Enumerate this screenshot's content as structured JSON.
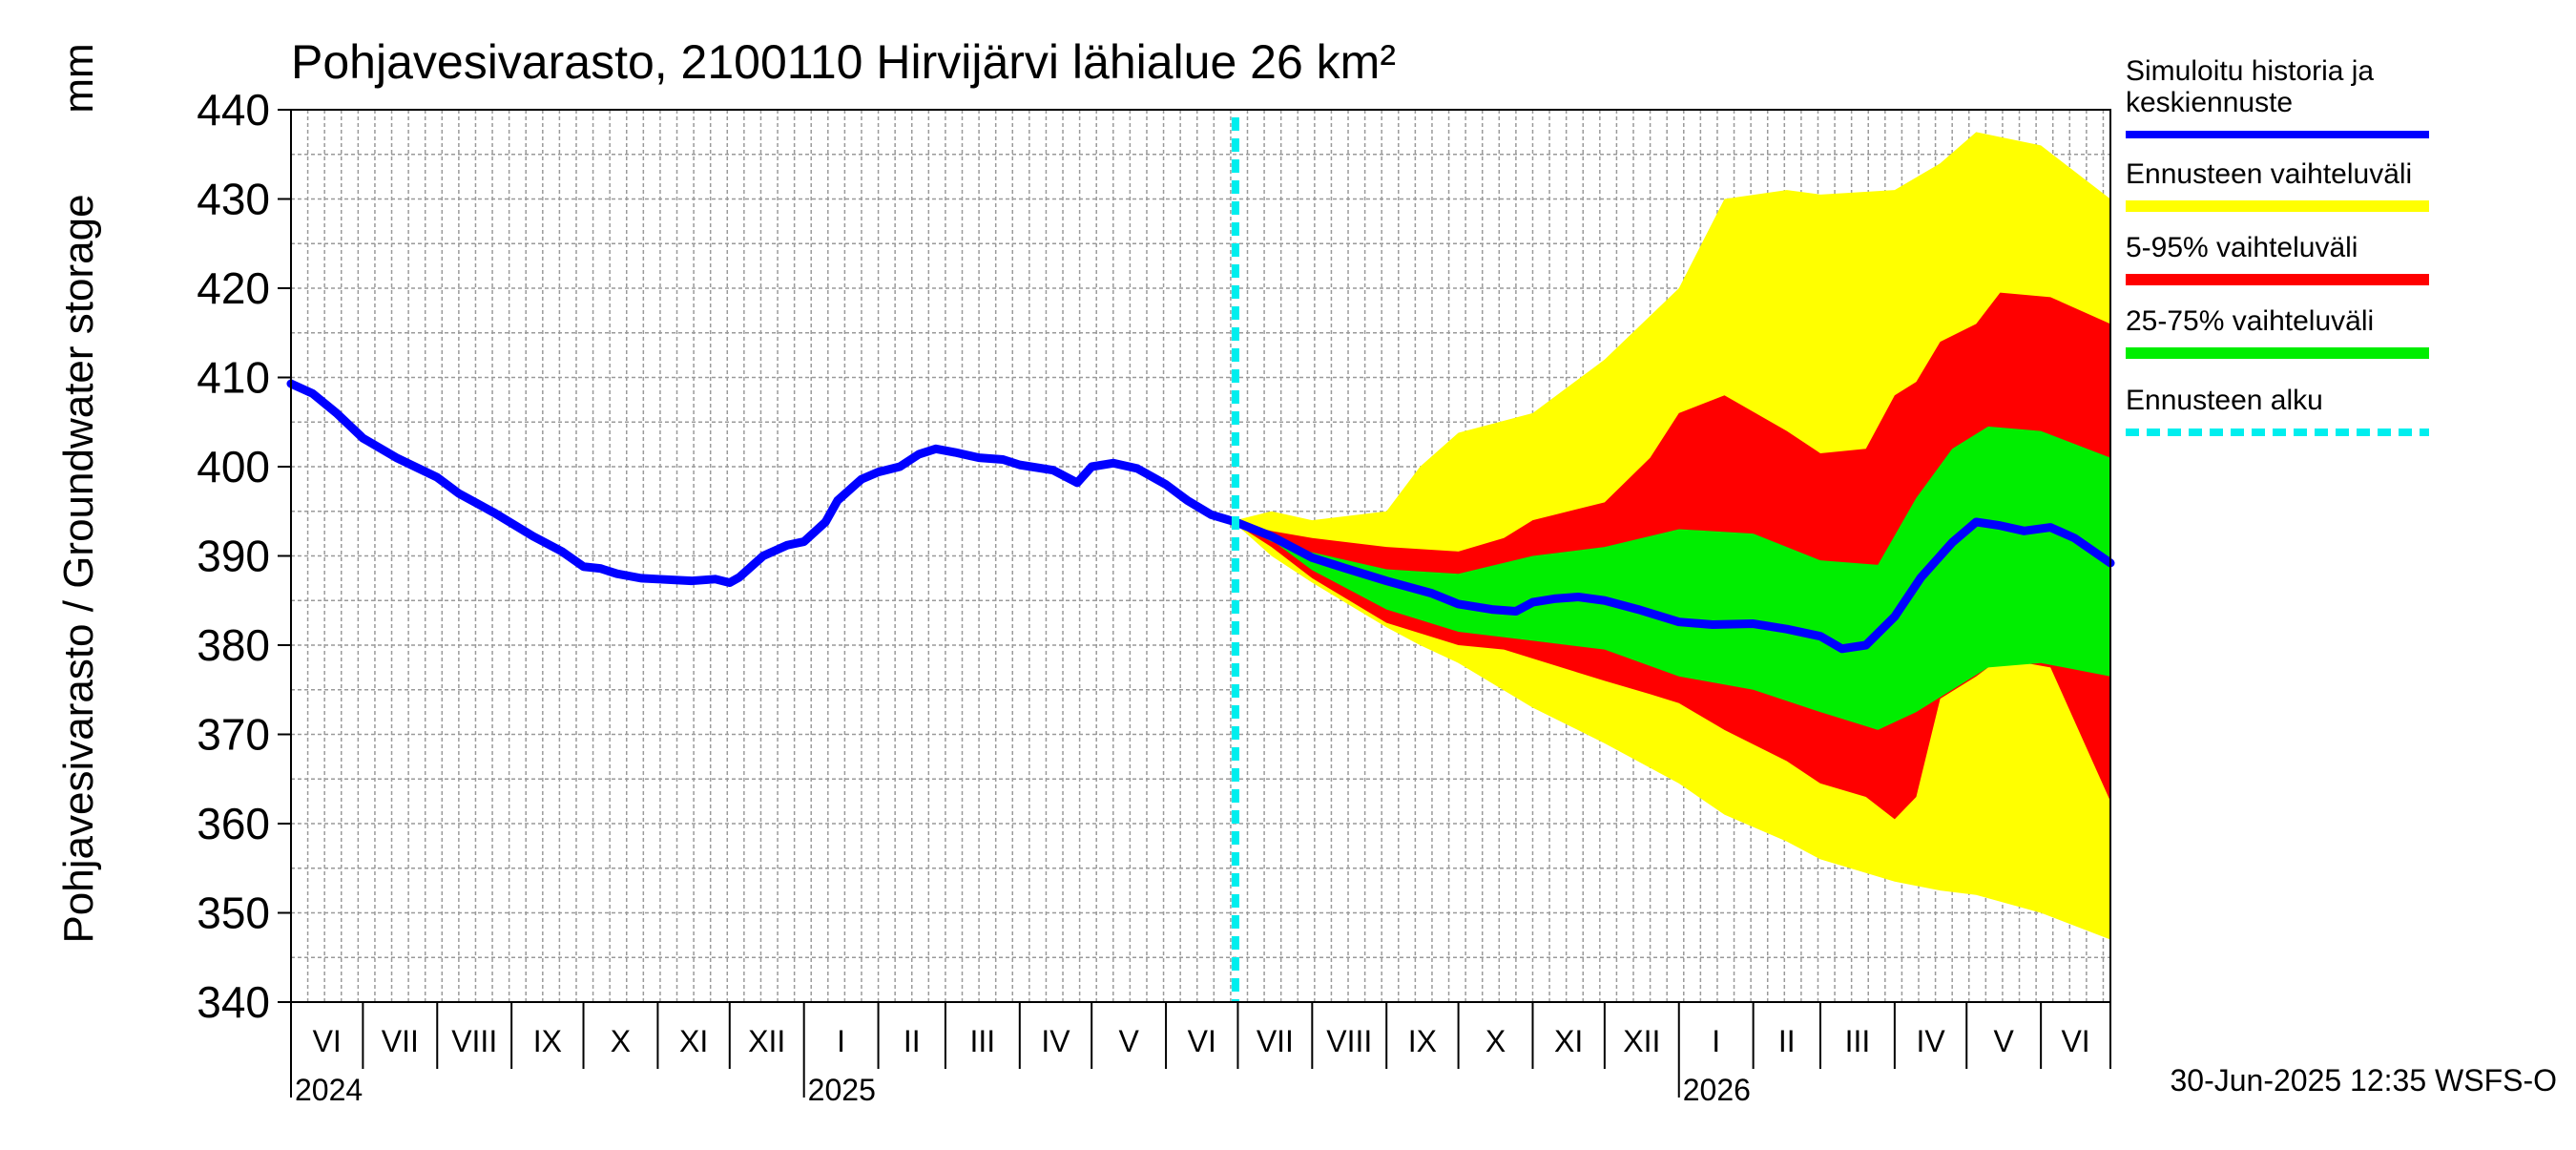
{
  "chart_data": {
    "type": "area",
    "title": "Pohjavesivarasto, 2100110 Hirvijärvi lähialue 26 km²",
    "ylabel": "Pohjavesivarasto / Groundwater storage",
    "yunit": "mm",
    "ylim": [
      340,
      440
    ],
    "yticks": [
      340,
      350,
      360,
      370,
      380,
      390,
      400,
      410,
      420,
      430,
      440
    ],
    "xlim": [
      "2024-06-01",
      "2026-06-30"
    ],
    "grid": true,
    "forecast_start": "2025-06-30",
    "month_labels": [
      {
        "label": "VI",
        "start": "2024-06-01"
      },
      {
        "label": "VII",
        "start": "2024-07-01"
      },
      {
        "label": "VIII",
        "start": "2024-08-01"
      },
      {
        "label": "IX",
        "start": "2024-09-01"
      },
      {
        "label": "X",
        "start": "2024-10-01"
      },
      {
        "label": "XI",
        "start": "2024-11-01"
      },
      {
        "label": "XII",
        "start": "2024-12-01"
      },
      {
        "label": "I",
        "start": "2025-01-01"
      },
      {
        "label": "II",
        "start": "2025-02-01"
      },
      {
        "label": "III",
        "start": "2025-03-01"
      },
      {
        "label": "IV",
        "start": "2025-04-01"
      },
      {
        "label": "V",
        "start": "2025-05-01"
      },
      {
        "label": "VI",
        "start": "2025-06-01"
      },
      {
        "label": "VII",
        "start": "2025-07-01"
      },
      {
        "label": "VIII",
        "start": "2025-08-01"
      },
      {
        "label": "IX",
        "start": "2025-09-01"
      },
      {
        "label": "X",
        "start": "2025-10-01"
      },
      {
        "label": "XI",
        "start": "2025-11-01"
      },
      {
        "label": "XII",
        "start": "2025-12-01"
      },
      {
        "label": "I",
        "start": "2026-01-01"
      },
      {
        "label": "II",
        "start": "2026-02-01"
      },
      {
        "label": "III",
        "start": "2026-03-01"
      },
      {
        "label": "IV",
        "start": "2026-04-01"
      },
      {
        "label": "V",
        "start": "2026-05-01"
      },
      {
        "label": "VI",
        "start": "2026-06-01"
      }
    ],
    "year_labels": [
      {
        "label": "2024",
        "date": "2024-06-01"
      },
      {
        "label": "2025",
        "date": "2025-01-01"
      },
      {
        "label": "2026",
        "date": "2026-01-01"
      }
    ],
    "legend": [
      {
        "label": "Simuloitu historia ja keskiennuste",
        "color": "#0000ff",
        "style": "line"
      },
      {
        "label": "Ennusteen vaihteluväli",
        "color": "#ffff00",
        "style": "band"
      },
      {
        "label": "5-95% vaihteluväli",
        "color": "#ff0000",
        "style": "band"
      },
      {
        "label": "25-75% vaihteluväli",
        "color": "#00ee00",
        "style": "band"
      },
      {
        "label": "Ennusteen alku",
        "color": "#00eeee",
        "style": "dashed"
      }
    ],
    "series": [
      {
        "name": "Simuloitu historia ja keskiennuste",
        "color": "#0000ff",
        "points": [
          [
            "2024-06-01",
            409.3
          ],
          [
            "2024-06-10",
            408.2
          ],
          [
            "2024-06-20",
            406.0
          ],
          [
            "2024-07-01",
            403.2
          ],
          [
            "2024-07-15",
            401.0
          ],
          [
            "2024-08-01",
            398.8
          ],
          [
            "2024-08-10",
            397.0
          ],
          [
            "2024-08-25",
            394.8
          ],
          [
            "2024-09-10",
            392.2
          ],
          [
            "2024-09-22",
            390.5
          ],
          [
            "2024-10-01",
            388.8
          ],
          [
            "2024-10-08",
            388.6
          ],
          [
            "2024-10-15",
            388.0
          ],
          [
            "2024-10-25",
            387.5
          ],
          [
            "2024-11-01",
            387.4
          ],
          [
            "2024-11-15",
            387.2
          ],
          [
            "2024-11-25",
            387.4
          ],
          [
            "2024-12-01",
            387.0
          ],
          [
            "2024-12-05",
            387.6
          ],
          [
            "2024-12-15",
            390.0
          ],
          [
            "2024-12-25",
            391.2
          ],
          [
            "2025-01-01",
            391.6
          ],
          [
            "2025-01-10",
            393.8
          ],
          [
            "2025-01-15",
            396.2
          ],
          [
            "2025-01-25",
            398.6
          ],
          [
            "2025-02-01",
            399.4
          ],
          [
            "2025-02-10",
            400.0
          ],
          [
            "2025-02-18",
            401.4
          ],
          [
            "2025-02-25",
            402.0
          ],
          [
            "2025-03-05",
            401.6
          ],
          [
            "2025-03-15",
            401.0
          ],
          [
            "2025-03-25",
            400.8
          ],
          [
            "2025-04-01",
            400.2
          ],
          [
            "2025-04-15",
            399.6
          ],
          [
            "2025-04-25",
            398.2
          ],
          [
            "2025-05-01",
            400.0
          ],
          [
            "2025-05-10",
            400.4
          ],
          [
            "2025-05-20",
            399.8
          ],
          [
            "2025-06-01",
            398.0
          ],
          [
            "2025-06-10",
            396.2
          ],
          [
            "2025-06-20",
            394.6
          ],
          [
            "2025-06-30",
            393.8
          ],
          [
            "2025-07-15",
            392.2
          ],
          [
            "2025-08-01",
            389.8
          ],
          [
            "2025-08-15",
            388.6
          ],
          [
            "2025-09-01",
            387.2
          ],
          [
            "2025-09-20",
            385.8
          ],
          [
            "2025-10-01",
            384.6
          ],
          [
            "2025-10-15",
            384.0
          ],
          [
            "2025-10-25",
            383.8
          ],
          [
            "2025-11-01",
            384.8
          ],
          [
            "2025-11-10",
            385.2
          ],
          [
            "2025-11-20",
            385.4
          ],
          [
            "2025-12-01",
            385.0
          ],
          [
            "2025-12-15",
            384.0
          ],
          [
            "2026-01-01",
            382.6
          ],
          [
            "2026-01-15",
            382.3
          ],
          [
            "2026-02-01",
            382.4
          ],
          [
            "2026-02-15",
            381.8
          ],
          [
            "2026-03-01",
            381.0
          ],
          [
            "2026-03-10",
            379.6
          ],
          [
            "2026-03-20",
            380.0
          ],
          [
            "2026-04-01",
            383.2
          ],
          [
            "2026-04-12",
            387.6
          ],
          [
            "2026-04-25",
            391.5
          ],
          [
            "2026-05-05",
            393.8
          ],
          [
            "2026-05-15",
            393.4
          ],
          [
            "2026-05-25",
            392.8
          ],
          [
            "2026-06-05",
            393.2
          ],
          [
            "2026-06-15",
            392.0
          ],
          [
            "2026-06-30",
            389.2
          ]
        ]
      },
      {
        "name": "Ennusteen vaihteluväli",
        "color": "#ffff00",
        "band": [
          [
            "2025-06-30",
            394.0,
            393.6
          ],
          [
            "2025-07-15",
            395.0,
            390.0
          ],
          [
            "2025-08-01",
            394.0,
            387.0
          ],
          [
            "2025-09-01",
            395.0,
            382.0
          ],
          [
            "2025-09-15",
            400.0,
            380.0
          ],
          [
            "2025-10-01",
            403.8,
            378.0
          ],
          [
            "2025-11-01",
            406.0,
            373.0
          ],
          [
            "2025-12-01",
            412.0,
            369.0
          ],
          [
            "2026-01-01",
            420.0,
            364.5
          ],
          [
            "2026-01-20",
            430.0,
            361.0
          ],
          [
            "2026-02-15",
            431.0,
            358.0
          ],
          [
            "2026-03-01",
            430.5,
            356.0
          ],
          [
            "2026-04-01",
            431.0,
            353.5
          ],
          [
            "2026-04-20",
            434.0,
            352.5
          ],
          [
            "2026-05-05",
            437.5,
            352.0
          ],
          [
            "2026-06-01",
            436.0,
            350.0
          ],
          [
            "2026-06-30",
            430.0,
            347.0
          ]
        ]
      },
      {
        "name": "5-95% vaihteluväli",
        "color": "#ff0000",
        "band": [
          [
            "2025-06-30",
            393.8,
            393.6
          ],
          [
            "2025-07-15",
            392.8,
            391.0
          ],
          [
            "2025-08-01",
            392.0,
            387.5
          ],
          [
            "2025-09-01",
            391.0,
            382.5
          ],
          [
            "2025-10-01",
            390.5,
            380.0
          ],
          [
            "2025-10-20",
            392.0,
            379.5
          ],
          [
            "2025-11-01",
            394.0,
            378.5
          ],
          [
            "2025-12-01",
            396.0,
            376.0
          ],
          [
            "2025-12-20",
            401.0,
            374.5
          ],
          [
            "2026-01-01",
            406.0,
            373.5
          ],
          [
            "2026-01-20",
            408.0,
            370.5
          ],
          [
            "2026-02-15",
            404.0,
            367.0
          ],
          [
            "2026-03-01",
            401.5,
            364.5
          ],
          [
            "2026-03-20",
            402.0,
            363.0
          ],
          [
            "2026-04-01",
            408.0,
            360.5
          ],
          [
            "2026-04-10",
            409.5,
            363.0
          ],
          [
            "2026-04-20",
            414.0,
            374.0
          ],
          [
            "2026-05-05",
            416.0,
            376.5
          ],
          [
            "2026-05-15",
            419.5,
            378.5
          ],
          [
            "2026-06-05",
            419.0,
            377.5
          ],
          [
            "2026-06-30",
            416.0,
            362.5
          ]
        ]
      },
      {
        "name": "25-75% vaihteluväli",
        "color": "#00ee00",
        "band": [
          [
            "2025-06-30",
            393.7,
            393.6
          ],
          [
            "2025-07-15",
            391.6,
            391.8
          ],
          [
            "2025-08-01",
            390.4,
            388.4
          ],
          [
            "2025-09-01",
            388.5,
            384.0
          ],
          [
            "2025-10-01",
            388.0,
            381.5
          ],
          [
            "2025-11-01",
            390.0,
            380.5
          ],
          [
            "2025-12-01",
            391.0,
            379.5
          ],
          [
            "2026-01-01",
            393.0,
            376.5
          ],
          [
            "2026-02-01",
            392.5,
            375.0
          ],
          [
            "2026-03-01",
            389.5,
            372.5
          ],
          [
            "2026-03-25",
            389.0,
            370.5
          ],
          [
            "2026-04-10",
            396.5,
            372.5
          ],
          [
            "2026-04-25",
            402.0,
            375.0
          ],
          [
            "2026-05-10",
            404.5,
            377.5
          ],
          [
            "2026-06-01",
            404.0,
            378.0
          ],
          [
            "2026-06-30",
            401.0,
            376.5
          ]
        ]
      }
    ]
  },
  "footer_text": "30-Jun-2025 12:35 WSFS-O"
}
